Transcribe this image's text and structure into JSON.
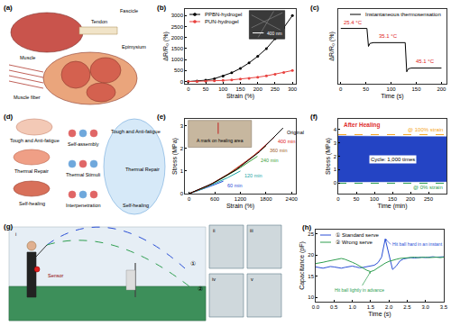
{
  "diagrams": {
    "a": {
      "panel_label": "(a)",
      "labels": [
        "Tendon",
        "Fascicle",
        "Muscle",
        "Epimysium",
        "Muscle fiber"
      ]
    },
    "d": {
      "panel_label": "(d)",
      "labels": [
        "Tough and Anti-fatigue",
        "Thermal Repair",
        "Self-healing",
        "Self-assembly",
        "Thermal Stimuli",
        "Interpenetration",
        "Tough and Anti-fatigue",
        "Thermal Repair",
        "Self-healing"
      ]
    },
    "g": {
      "panel_label": "(g)",
      "labels": [
        "①",
        "②",
        "Sensor",
        "i",
        "ii",
        "iii",
        "iv",
        "v"
      ]
    }
  },
  "chart_data": [
    {
      "panel_label": "(b)",
      "type": "line",
      "marker": "circle",
      "x_label": "Strain (%)",
      "y_label": "ΔR/R₀ (%)",
      "x": [
        0,
        25,
        50,
        75,
        100,
        125,
        150,
        175,
        200,
        225,
        250,
        275,
        300
      ],
      "series": [
        {
          "name": "PPBN-hydrogel",
          "color": "#000000",
          "values": [
            0,
            20,
            60,
            130,
            250,
            400,
            600,
            850,
            1150,
            1500,
            1950,
            2450,
            3000
          ]
        },
        {
          "name": "PUN-hydrogel",
          "color": "#e8423f",
          "values": [
            0,
            5,
            15,
            30,
            50,
            75,
            110,
            150,
            200,
            260,
            330,
            410,
            500
          ]
        }
      ],
      "xlim": [
        -10,
        310
      ],
      "xticks": [
        0,
        50,
        100,
        150,
        200,
        250,
        300
      ],
      "ylim": [
        -100,
        3300
      ],
      "yticks": [
        0,
        500,
        1000,
        1500,
        2000,
        2500,
        3000
      ],
      "grid": false,
      "legend": "upper left",
      "annotations": [
        "400 nm"
      ]
    },
    {
      "panel_label": "(c)",
      "type": "line",
      "x_label": "Time (s)",
      "y_label": "ΔR/R₀ (%)",
      "x": [
        0,
        20,
        40,
        52,
        55,
        58,
        65,
        80,
        100,
        120,
        128,
        131,
        134,
        140,
        160,
        180,
        200
      ],
      "series": [
        {
          "name": "Instantaneous thermosensation",
          "color": "#000000",
          "values": [
            0.74,
            0.74,
            0.74,
            0.74,
            0.5,
            0.54,
            0.55,
            0.55,
            0.55,
            0.55,
            0.55,
            0.16,
            0.2,
            0.21,
            0.21,
            0.21,
            0.21
          ]
        }
      ],
      "xlim": [
        -5,
        210
      ],
      "xticks": [
        0,
        50,
        100,
        150,
        200
      ],
      "ylim": [
        0,
        1
      ],
      "tick_labels": "x",
      "grid": false,
      "legend": "upper right",
      "annotations": [
        "25.4 °C",
        "35.1 °C",
        "45.1 °C"
      ]
    },
    {
      "panel_label": "(e)",
      "type": "line",
      "x_label": "Strain (%)",
      "y_label": "Stress (MPa)",
      "series": [
        {
          "name": "60 min",
          "color": "#1f4fd8",
          "x": [
            0,
            200,
            400,
            600,
            800
          ],
          "values": [
            0,
            0.12,
            0.26,
            0.4,
            0.55
          ]
        },
        {
          "name": "120 min",
          "color": "#1aa6a6",
          "x": [
            0,
            300,
            600,
            900,
            1200
          ],
          "values": [
            0,
            0.2,
            0.45,
            0.7,
            1.0
          ]
        },
        {
          "name": "240 min",
          "color": "#3aa03a",
          "x": [
            0,
            400,
            800,
            1200,
            1600
          ],
          "values": [
            0,
            0.3,
            0.7,
            1.15,
            1.65
          ]
        },
        {
          "name": "360 min",
          "color": "#a0622d",
          "x": [
            0,
            450,
            900,
            1350,
            1800
          ],
          "values": [
            0,
            0.35,
            0.85,
            1.45,
            2.1
          ]
        },
        {
          "name": "400 min",
          "color": "#e02020",
          "x": [
            0,
            500,
            1000,
            1500,
            2000
          ],
          "values": [
            0,
            0.4,
            0.95,
            1.65,
            2.5
          ]
        },
        {
          "name": "Original",
          "color": "#000000",
          "x": [
            0,
            550,
            1100,
            1650,
            2200
          ],
          "values": [
            0,
            0.45,
            1.05,
            1.85,
            2.9
          ]
        }
      ],
      "xlim": [
        -100,
        2500
      ],
      "xticks": [
        0,
        600,
        1200,
        1800,
        2400
      ],
      "ylim": [
        0,
        3.3
      ],
      "yticks": [
        0,
        1,
        2,
        3
      ],
      "grid": false,
      "legend": "inline",
      "annotations": [
        "A mark on healing area"
      ]
    },
    {
      "panel_label": "(f)",
      "type": "line",
      "title": "After Healing",
      "x_label": "Time (min)",
      "y_label": "Stress (MPa)",
      "x": [
        0,
        50,
        100,
        150,
        200,
        250,
        300
      ],
      "series": [
        {
          "name": "Cycle: 1,000 times",
          "type": "band",
          "color": "#2444c4",
          "low": [
            0.08,
            0.08,
            0.09,
            0.09,
            0.1,
            0.1,
            0.1
          ],
          "high": [
            3.52,
            3.5,
            3.49,
            3.48,
            3.47,
            3.47,
            3.46
          ]
        },
        {
          "name": "@ 100% strain",
          "color": "#f5a623",
          "line_style": "dashed",
          "x": [
            0,
            300
          ],
          "values": [
            3.62,
            3.62
          ]
        },
        {
          "name": "@ 0% strain",
          "color": "#2e9e4f",
          "line_style": "dashed",
          "x": [
            0,
            300
          ],
          "values": [
            -0.02,
            -0.02
          ]
        }
      ],
      "xlim": [
        0,
        300
      ],
      "xticks": [
        0,
        50,
        100,
        150,
        200,
        250,
        300
      ],
      "ylim": [
        -0.8,
        4.8
      ],
      "yticks": [
        0,
        1,
        2,
        3,
        4
      ],
      "grid": false,
      "legend": "inline"
    },
    {
      "panel_label": "(h)",
      "type": "line",
      "x_label": "Time (s)",
      "y_label": "Capacitance (pF)",
      "x": [
        0,
        0.1,
        0.2,
        0.3,
        0.4,
        0.5,
        0.6,
        0.7,
        0.8,
        0.9,
        1,
        1.1,
        1.2,
        1.3,
        1.4,
        1.5,
        1.6,
        1.7,
        1.8,
        1.9,
        2,
        2.1,
        2.2,
        2.3,
        2.4,
        2.5,
        2.6,
        2.7,
        2.8,
        2.9,
        3,
        3.1,
        3.2,
        3.3,
        3.4,
        3.5
      ],
      "series": [
        {
          "name": "① Standard serve",
          "color": "#2a4fd6",
          "values": [
            17.2,
            17.0,
            16.9,
            17.1,
            17.3,
            17.2,
            17.0,
            16.9,
            17.1,
            17.3,
            17.4,
            17.2,
            17.0,
            17.1,
            17.3,
            17.4,
            17.6,
            18.2,
            19.5,
            23.8,
            20.2,
            16.6,
            17.4,
            18.6,
            19.1,
            19.3,
            19.4,
            19.3,
            19.4,
            19.5,
            19.4,
            19.5,
            19.6,
            19.5,
            19.5,
            19.6
          ]
        },
        {
          "name": "② Wrong serve",
          "color": "#2e9e4f",
          "values": [
            18.0,
            18.1,
            18.3,
            18.5,
            18.7,
            18.9,
            19.1,
            19.2,
            19.0,
            18.7,
            18.3,
            17.9,
            17.4,
            16.9,
            16.4,
            16.1,
            16.4,
            17.0,
            17.6,
            18.1,
            18.5,
            18.8,
            19.0,
            19.2,
            19.3,
            19.4,
            19.4,
            19.5,
            19.4,
            19.5,
            19.5,
            19.4,
            19.5,
            19.5,
            19.4,
            19.5
          ]
        }
      ],
      "xlim": [
        0,
        3.5
      ],
      "xticks": [
        {
          "value": 0,
          "label": "0.0"
        },
        0.5,
        {
          "value": 1,
          "label": "1.0"
        },
        1.5,
        {
          "value": 2,
          "label": "2.0"
        },
        2.5,
        {
          "value": 3,
          "label": "3.0"
        },
        3.5
      ],
      "ylim": [
        9,
        26
      ],
      "yticks": [
        10,
        15,
        20,
        25
      ],
      "grid": false,
      "legend": "upper left",
      "annotations": [
        "Hit ball hard in an instant",
        "Hit ball lightly in advance"
      ]
    }
  ]
}
